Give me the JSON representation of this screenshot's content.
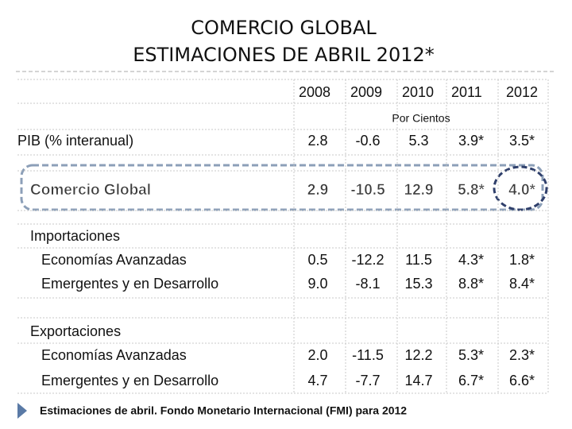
{
  "title": [
    "COMERCIO GLOBAL",
    "ESTIMACIONES DE ABRIL 2012*"
  ],
  "table": {
    "columns": [
      "2008",
      "2009",
      "2010",
      "2011",
      "2012"
    ],
    "unit": "Por Cientos",
    "rows": [
      {
        "label": "PIB (% interanual)",
        "values": [
          "2.8",
          "-0.6",
          "5.3",
          "3.9*",
          "3.5*"
        ]
      },
      {
        "label": "Comercio Global",
        "values": [
          "2.9",
          "-10.5",
          "12.9",
          "5.8*",
          "4.0*"
        ]
      },
      {
        "label": "Importaciones"
      },
      {
        "label": "Economías Avanzadas",
        "values": [
          "0.5",
          "-12.2",
          "11.5",
          "4.3*",
          "1.8*"
        ]
      },
      {
        "label": "Emergentes y en Desarrollo",
        "values": [
          "9.0",
          "-8.1",
          "15.3",
          "8.8*",
          "8.4*"
        ]
      },
      {
        "label": "Exportaciones"
      },
      {
        "label": "Economías Avanzadas",
        "values": [
          "2.0",
          "-11.5",
          "12.2",
          "5.3*",
          "2.3*"
        ]
      },
      {
        "label": "Emergentes y en Desarrollo",
        "values": [
          "4.7",
          "-7.7",
          "14.7",
          "6.7*",
          "6.6*"
        ]
      }
    ]
  },
  "footnote": "Estimaciones de abril. Fondo Monetario Internacional (FMI) para 2012"
}
